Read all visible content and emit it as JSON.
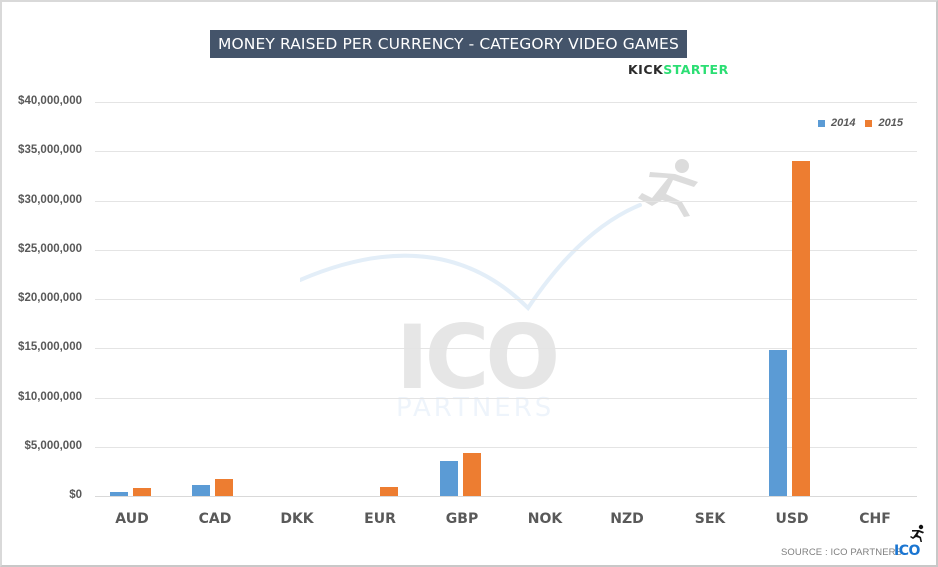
{
  "title": "MONEY RAISED PER CURRENCY - CATEGORY VIDEO GAMES",
  "brand_logo": {
    "part1": "KICK",
    "part2": "STARTER"
  },
  "legend": [
    {
      "label": "2014",
      "color": "#5b9bd5"
    },
    {
      "label": "2015",
      "color": "#ed7d31"
    }
  ],
  "y_axis": {
    "ticks": [
      "$40,000,000",
      "$35,000,000",
      "$30,000,000",
      "$25,000,000",
      "$20,000,000",
      "$15,000,000",
      "$10,000,000",
      "$5,000,000",
      "$0"
    ]
  },
  "x_axis": {
    "labels": [
      "AUD",
      "CAD",
      "DKK",
      "EUR",
      "GBP",
      "NOK",
      "NZD",
      "SEK",
      "USD",
      "CHF"
    ]
  },
  "watermark": {
    "main": "ICO",
    "sub": "PARTNERS"
  },
  "footer": {
    "source": "SOURCE : ICO PARTNERS",
    "logo": "ICO"
  },
  "chart_data": {
    "type": "bar",
    "title": "MONEY RAISED PER CURRENCY - CATEGORY VIDEO GAMES",
    "xlabel": "",
    "ylabel": "",
    "categories": [
      "AUD",
      "CAD",
      "DKK",
      "EUR",
      "GBP",
      "NOK",
      "NZD",
      "SEK",
      "USD",
      "CHF"
    ],
    "series": [
      {
        "name": "2014",
        "color": "#5b9bd5",
        "values": [
          400000,
          1100000,
          0,
          0,
          3550000,
          0,
          0,
          0,
          14800000,
          0
        ]
      },
      {
        "name": "2015",
        "color": "#ed7d31",
        "values": [
          800000,
          1700000,
          0,
          900000,
          4400000,
          0,
          0,
          0,
          34000000,
          0
        ]
      }
    ],
    "ylim": [
      0,
      40000000
    ],
    "ytick_step": 5000000,
    "grid": true,
    "legend_position": "top-right",
    "annotations": [
      "KICKSTARTER",
      "SOURCE : ICO PARTNERS"
    ]
  }
}
